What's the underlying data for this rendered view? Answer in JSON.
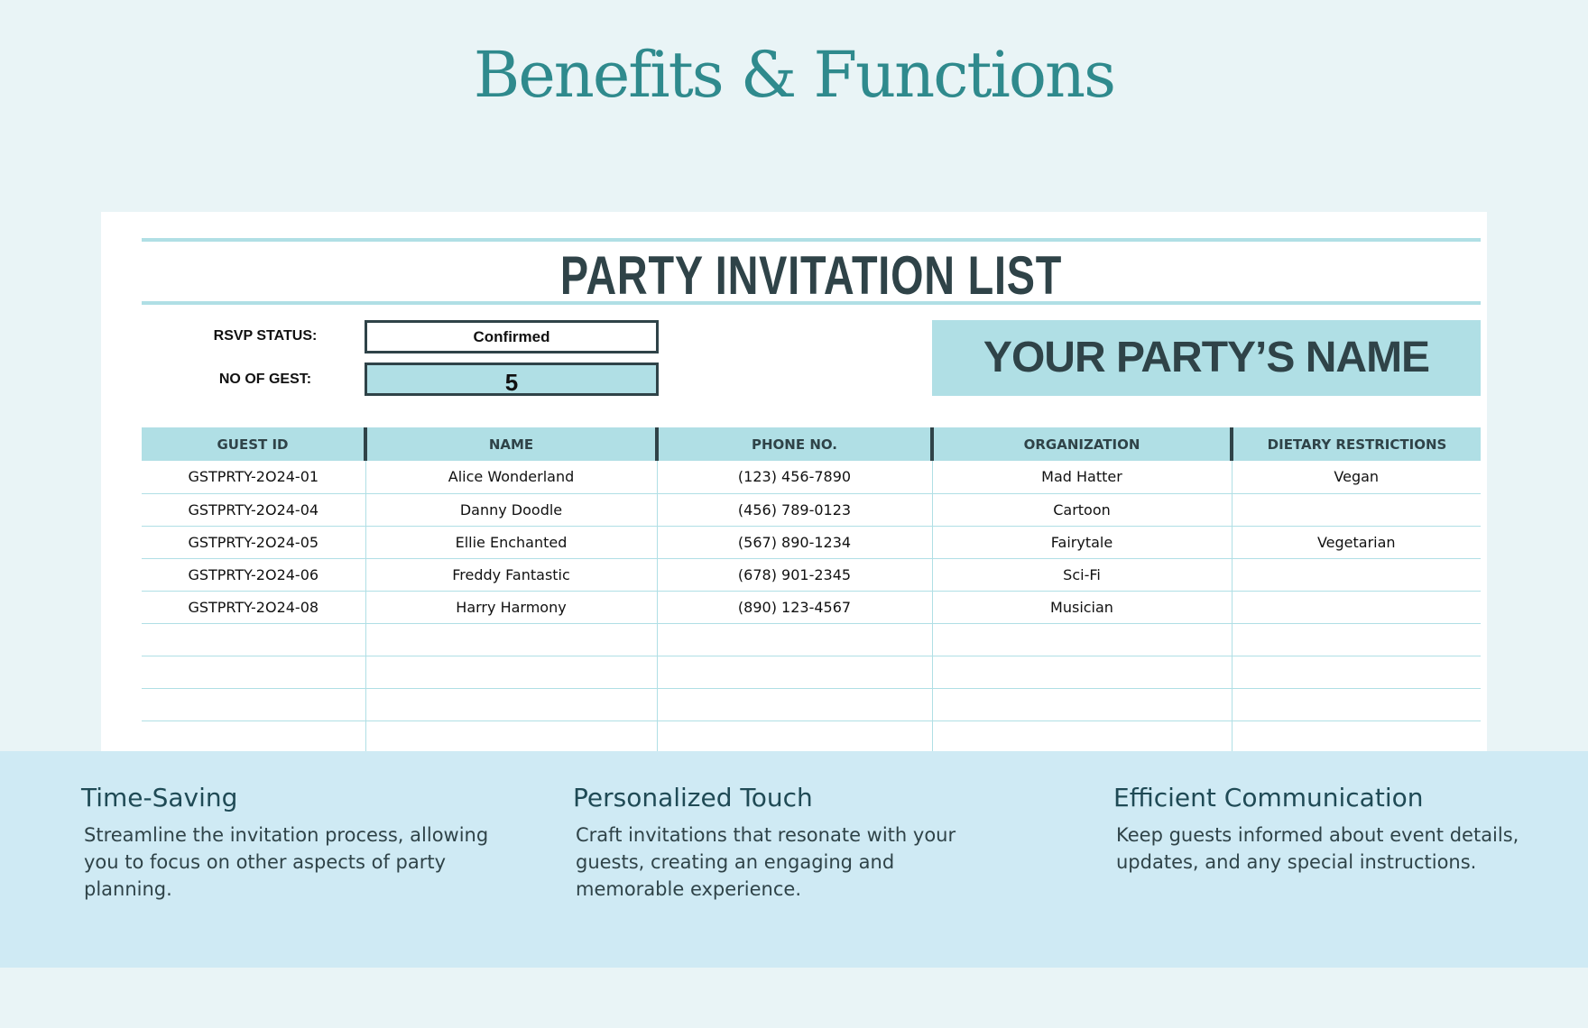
{
  "page_title": "Benefits & Functions",
  "sheet": {
    "title": "PARTY INVITATION LIST",
    "rsvp_label": "RSVP STATUS:",
    "rsvp_value": "Confirmed",
    "guests_label": "NO OF GEST:",
    "guests_value": "5",
    "party_name": "YOUR PARTY’S NAME",
    "columns": [
      "GUEST ID",
      "NAME",
      "PHONE NO.",
      "ORGANIZATION",
      "DIETARY RESTRICTIONS"
    ],
    "rows": [
      [
        "GSTPRTY-2O24-01",
        "Alice Wonderland",
        "(123) 456-7890",
        "Mad Hatter",
        "Vegan"
      ],
      [
        "GSTPRTY-2O24-04",
        "Danny Doodle",
        "(456) 789-0123",
        "Cartoon",
        ""
      ],
      [
        "GSTPRTY-2O24-05",
        "Ellie Enchanted",
        "(567) 890-1234",
        "Fairytale",
        "Vegetarian"
      ],
      [
        "GSTPRTY-2O24-06",
        "Freddy Fantastic",
        "(678) 901-2345",
        "Sci-Fi",
        ""
      ],
      [
        "GSTPRTY-2O24-08",
        "Harry Harmony",
        "(890) 123-4567",
        "Musician",
        ""
      ],
      [
        "",
        "",
        "",
        "",
        ""
      ],
      [
        "",
        "",
        "",
        "",
        ""
      ],
      [
        "",
        "",
        "",
        "",
        ""
      ],
      [
        "",
        "",
        "",
        "",
        ""
      ]
    ]
  },
  "features": [
    {
      "title": "Time-Saving",
      "text": "Streamline the invitation process, allowing you to focus on other aspects of party planning."
    },
    {
      "title": "Personalized Touch",
      "text": "Craft invitations that resonate with your guests, creating an engaging and memorable experience."
    },
    {
      "title": "Efficient Communication",
      "text": "Keep guests informed about event details, updates, and any special instructions."
    }
  ]
}
